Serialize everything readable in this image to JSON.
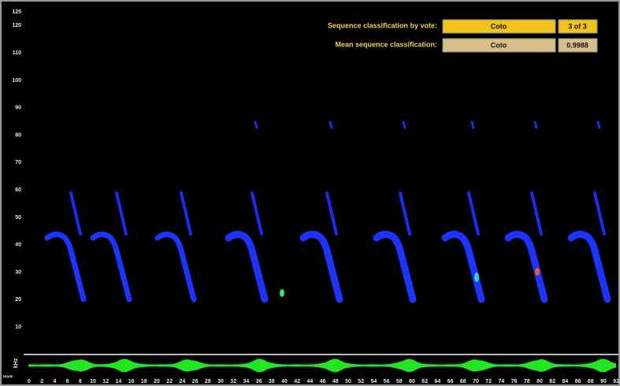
{
  "panel": {
    "vote_label": "Sequence classification by vote:",
    "vote_species": "Coto",
    "vote_count": "3 of 3",
    "mean_label": "Mean sequence classification:",
    "mean_species": "Coto",
    "mean_score": "0.9988"
  },
  "y_axis": {
    "unit": "kHz",
    "ticks": [
      125,
      120,
      110,
      100,
      90,
      80,
      70,
      60,
      50,
      40,
      30,
      20,
      10
    ]
  },
  "x_axis": {
    "unit": "msec",
    "ticks": [
      0,
      2,
      4,
      6,
      8,
      10,
      12,
      14,
      16,
      18,
      20,
      22,
      24,
      26,
      28,
      30,
      32,
      34,
      36,
      38,
      40,
      42,
      44,
      46,
      48,
      50,
      52,
      54,
      56,
      58,
      60,
      62,
      64,
      66,
      68,
      70,
      72,
      74,
      76,
      78,
      80,
      82,
      84,
      86,
      88,
      90,
      92
    ]
  }
}
